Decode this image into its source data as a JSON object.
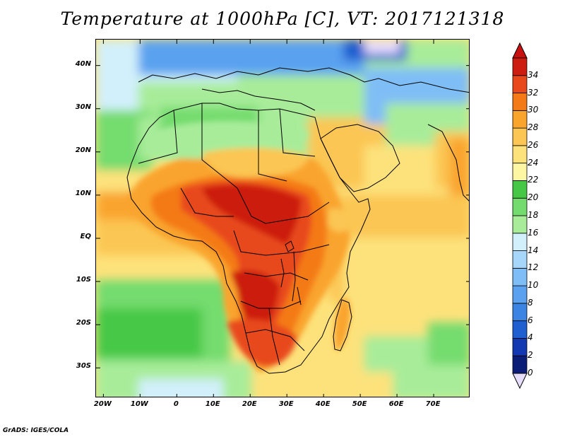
{
  "title": "Temperature at 1000hPa [C], VT: 2017121318",
  "credit": "GrADS: IGES/COLA",
  "map": {
    "lon_range": [
      -22,
      80
    ],
    "lat_range": [
      -37,
      46
    ],
    "lat_ticks": [
      {
        "value": 40,
        "label": "40N"
      },
      {
        "value": 30,
        "label": "30N"
      },
      {
        "value": 20,
        "label": "20N"
      },
      {
        "value": 10,
        "label": "10N"
      },
      {
        "value": 0,
        "label": "EQ"
      },
      {
        "value": -10,
        "label": "10S"
      },
      {
        "value": -20,
        "label": "20S"
      },
      {
        "value": -30,
        "label": "30S"
      }
    ],
    "lon_ticks": [
      {
        "value": -20,
        "label": "20W"
      },
      {
        "value": -10,
        "label": "10W"
      },
      {
        "value": 0,
        "label": "0"
      },
      {
        "value": 10,
        "label": "10E"
      },
      {
        "value": 20,
        "label": "20E"
      },
      {
        "value": 30,
        "label": "30E"
      },
      {
        "value": 40,
        "label": "40E"
      },
      {
        "value": 50,
        "label": "50E"
      },
      {
        "value": 60,
        "label": "60E"
      },
      {
        "value": 70,
        "label": "70E"
      }
    ]
  },
  "colorbar": {
    "levels": [
      0,
      2,
      4,
      6,
      8,
      10,
      12,
      14,
      16,
      18,
      20,
      22,
      24,
      26,
      28,
      30,
      32,
      34
    ],
    "level_labels": [
      "0",
      "2",
      "4",
      "6",
      "8",
      "10",
      "12",
      "14",
      "16",
      "18",
      "20",
      "22",
      "24",
      "26",
      "28",
      "30",
      "32",
      "34"
    ],
    "colors": [
      "#0a1e78",
      "#1339b2",
      "#1f5fd0",
      "#3b84e4",
      "#5aa2f0",
      "#7fbdf6",
      "#a6d6f9",
      "#d2f0fb",
      "#a8ec9a",
      "#74dc6e",
      "#46c846",
      "#fdf7a4",
      "#fde27b",
      "#fbc653",
      "#f9a42d",
      "#f47a18",
      "#e8481b",
      "#cc1d10"
    ],
    "under_color": "#e6ddfb",
    "over_color": "#c81010"
  }
}
